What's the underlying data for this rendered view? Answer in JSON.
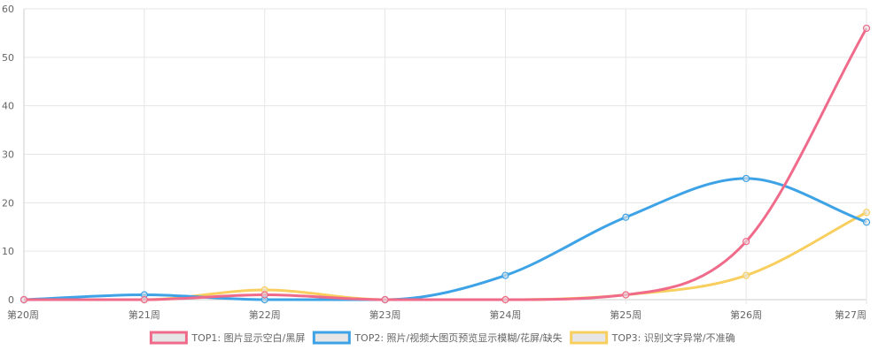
{
  "chart_data": {
    "type": "line",
    "categories": [
      "第20周",
      "第21周",
      "第22周",
      "第23周",
      "第24周",
      "第25周",
      "第26周",
      "第27周"
    ],
    "ylim": [
      0,
      60
    ],
    "yticks": [
      0,
      10,
      20,
      30,
      40,
      50,
      60
    ],
    "grid": true,
    "legend": "bottom",
    "series": [
      {
        "name": "TOP1: 图片显示空白/黑屏",
        "color": "#f06a8a",
        "values": [
          0,
          0,
          1,
          0,
          0,
          1,
          12,
          56
        ]
      },
      {
        "name": "TOP2: 照片/视频大图页预览显示模糊/花屏/缺失",
        "color": "#3ea3e6",
        "values": [
          0,
          1,
          0,
          0,
          5,
          17,
          25,
          16
        ]
      },
      {
        "name": "TOP3: 识别文字异常/不准确",
        "color": "#f8cf5e",
        "values": [
          0,
          0,
          2,
          0,
          0,
          1,
          5,
          18
        ]
      }
    ]
  }
}
